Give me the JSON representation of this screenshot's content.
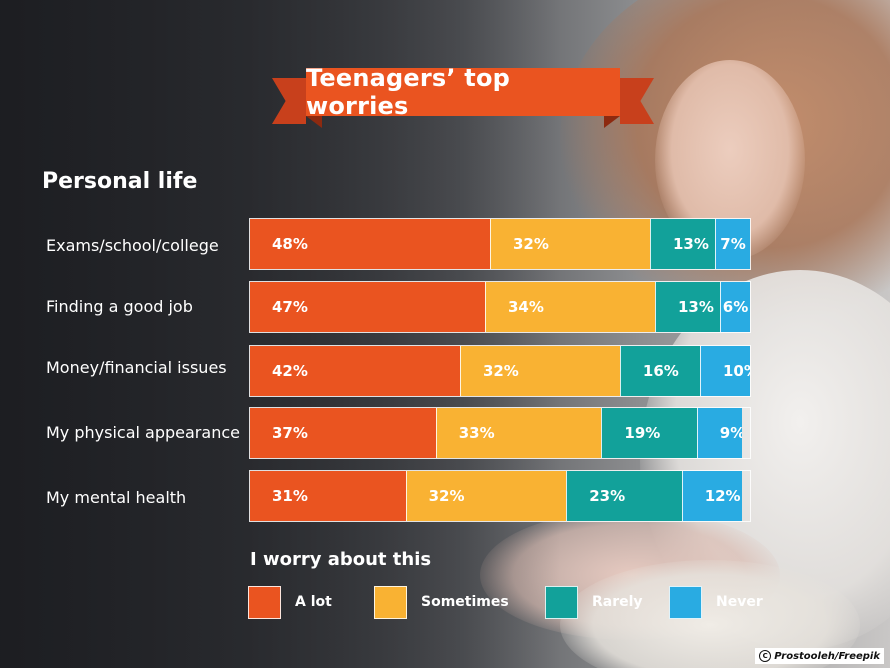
{
  "title": "Teenagers’ top worries",
  "section_title": "Personal life",
  "legend_title": "I worry about this",
  "credit": "Prostooleh/Freepik",
  "colors": {
    "a_lot": "#ea5420",
    "sometimes": "#f9b233",
    "rarely": "#12a19a",
    "never": "#29abe2"
  },
  "chart_data": {
    "type": "bar",
    "orientation": "horizontal",
    "stacked": true,
    "categories": [
      "Exams/school/college",
      "Finding a good job",
      "Money/financial issues",
      "My physical appearance",
      "My mental health"
    ],
    "series": [
      {
        "name": "A lot",
        "color": "#ea5420",
        "values": [
          48,
          47,
          42,
          37,
          31
        ],
        "labels": [
          "48%",
          "47%",
          "42%",
          "37%",
          "31%"
        ]
      },
      {
        "name": "Sometimes",
        "color": "#f9b233",
        "values": [
          32,
          34,
          32,
          33,
          32
        ],
        "labels": [
          "32%",
          "34%",
          "32%",
          "33%",
          "32%"
        ]
      },
      {
        "name": "Rarely",
        "color": "#12a19a",
        "values": [
          13,
          13,
          16,
          19,
          23
        ],
        "labels": [
          "13%",
          "13%",
          "16%",
          "19%",
          "23%"
        ]
      },
      {
        "name": "Never",
        "color": "#29abe2",
        "values": [
          7,
          6,
          10,
          9,
          12
        ],
        "labels": [
          "7%",
          "6%",
          "10%",
          "9%",
          "12%"
        ]
      }
    ],
    "xlim": [
      0,
      100
    ],
    "legend_position": "bottom"
  }
}
